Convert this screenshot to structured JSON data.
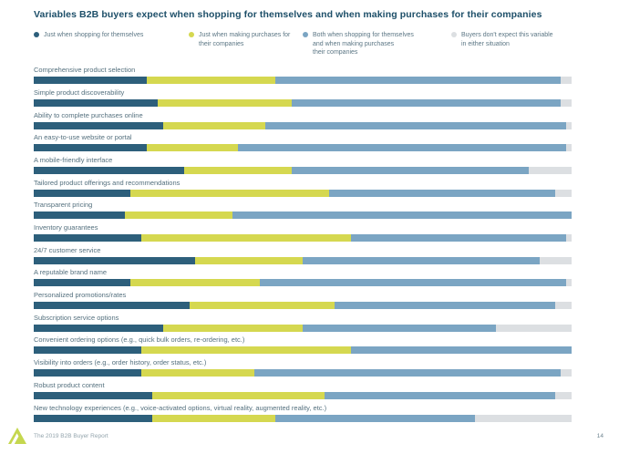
{
  "title": "Variables B2B buyers expect when shopping for themselves and when making purchases for their companies",
  "legend": {
    "items": [
      {
        "label": "Just when shopping for themselves",
        "color": "#2d5f7b"
      },
      {
        "label": "Just when making purchases for\ntheir companies",
        "color": "#d5d850"
      },
      {
        "label": "Both when shopping for themselves\nand when making purchases\ntheir companies",
        "color": "#7ba5c3"
      },
      {
        "label": "Buyers don't expect this variable\nin either situation",
        "color": "#dcdfe2"
      }
    ]
  },
  "chart_data": {
    "type": "bar",
    "stacked": true,
    "orientation": "horizontal",
    "unit": "percent",
    "xlim": [
      0,
      100
    ],
    "grid": false,
    "legend_position": "top",
    "series": [
      {
        "name": "Just when shopping for themselves",
        "color": "#2d5f7b",
        "key": "just-themselves"
      },
      {
        "name": "Just when making purchases for their companies",
        "color": "#d5d850",
        "key": "just-companies"
      },
      {
        "name": "Both when shopping for themselves and when making purchases their companies",
        "color": "#7ba5c3",
        "key": "both"
      },
      {
        "name": "Buyers don't expect this variable in either situation",
        "color": "#dcdfe2",
        "key": "neither"
      }
    ],
    "rows": [
      {
        "label": "Comprehensive product selection",
        "values": [
          21,
          24,
          53,
          2
        ]
      },
      {
        "label": "Simple product discoverability",
        "values": [
          23,
          25,
          50,
          2
        ]
      },
      {
        "label": "Ability to complete purchases online",
        "values": [
          24,
          19,
          56,
          1
        ]
      },
      {
        "label": "An easy-to-use website or portal",
        "values": [
          21,
          17,
          61,
          1
        ]
      },
      {
        "label": "A mobile-friendly interface",
        "values": [
          28,
          20,
          44,
          8
        ]
      },
      {
        "label": "Tailored product offerings and recommendations",
        "values": [
          18,
          37,
          42,
          3
        ]
      },
      {
        "label": "Transparent pricing",
        "values": [
          17,
          20,
          63,
          0
        ]
      },
      {
        "label": "Inventory guarantees",
        "values": [
          20,
          39,
          40,
          1
        ]
      },
      {
        "label": "24/7 customer service",
        "values": [
          30,
          20,
          44,
          6
        ]
      },
      {
        "label": "A reputable brand name",
        "values": [
          18,
          24,
          57,
          1
        ]
      },
      {
        "label": "Personalized promotions/rates",
        "values": [
          29,
          27,
          41,
          3
        ]
      },
      {
        "label": "Subscription service options",
        "values": [
          24,
          26,
          36,
          14
        ]
      },
      {
        "label": "Convenient ordering options (e.g., quick bulk orders, re-ordering, etc.)",
        "values": [
          20,
          39,
          41,
          0
        ]
      },
      {
        "label": "Visibility into orders (e.g., order history, order status, etc.)",
        "values": [
          20,
          21,
          57,
          2
        ]
      },
      {
        "label": "Robust product content",
        "values": [
          22,
          32,
          43,
          3
        ]
      },
      {
        "label": "New technology experiences (e.g., voice-activated options, virtual reality, augmented reality, etc.)",
        "values": [
          22,
          23,
          37,
          18
        ]
      }
    ]
  },
  "footer": {
    "report_title": "The 2019 B2B Buyer Report",
    "page_number": "14",
    "logo": "avionos-triangle-logo",
    "logo_color": "#c5d74f"
  }
}
